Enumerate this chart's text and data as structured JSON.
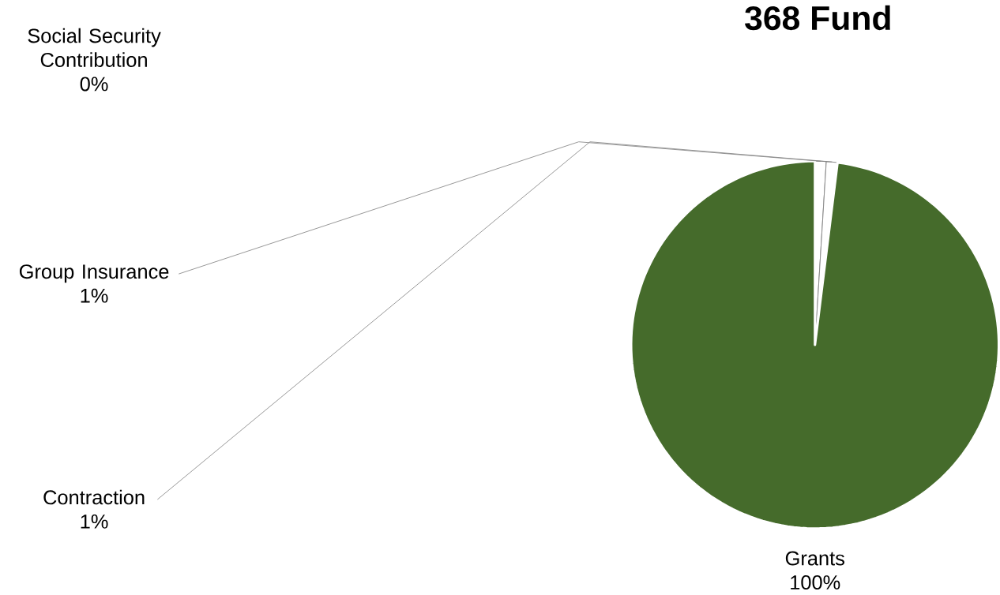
{
  "chart_data": {
    "type": "pie",
    "title": "368 Fund",
    "categories": [
      "Social Security Contribution",
      "Group Insurance",
      "Contraction",
      "Grants"
    ],
    "values": [
      0,
      1,
      1,
      100
    ],
    "value_labels": [
      "0%",
      "1%",
      "1%",
      "100%"
    ],
    "colors": [
      "#ffffff",
      "#ffffff",
      "#ffffff",
      "#456b2b"
    ]
  }
}
